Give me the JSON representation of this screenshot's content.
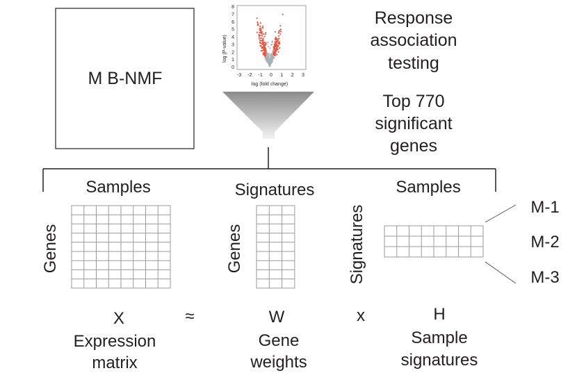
{
  "method_box": {
    "label": "M B-NMF"
  },
  "volcano": {
    "x_label": "log (fold change)",
    "y_label": "log (P-value)",
    "x_ticks": [
      "-3",
      "-2",
      "-1",
      "0",
      "1",
      "2",
      "3"
    ],
    "y_ticks": [
      "0",
      "1",
      "2",
      "3",
      "4",
      "5",
      "6",
      "7",
      "8"
    ],
    "colors": {
      "significant": "#e8543f",
      "not_significant": "#a9b1b9"
    }
  },
  "response_text": [
    "Response",
    "association",
    "testing"
  ],
  "top_genes_text": [
    "Top 770",
    "significant",
    "genes"
  ],
  "matrices": {
    "x": {
      "col_label": "Samples",
      "row_label": "Genes",
      "symbol": "X",
      "caption": [
        "Expression",
        "matrix"
      ],
      "rows": 9,
      "cols": 8
    },
    "approx_symbol": "≈",
    "w": {
      "col_label": "Signatures",
      "row_label": "Genes",
      "symbol": "W",
      "caption": [
        "Gene",
        "weights"
      ],
      "rows": 9,
      "cols": 3
    },
    "times_symbol": "x",
    "h": {
      "col_label": "Samples",
      "row_label": "Signatures",
      "symbol": "H",
      "caption": [
        "Sample",
        "signatures"
      ],
      "rows": 3,
      "cols": 8
    }
  },
  "signatures": [
    "M-1",
    "M-2",
    "M-3"
  ]
}
